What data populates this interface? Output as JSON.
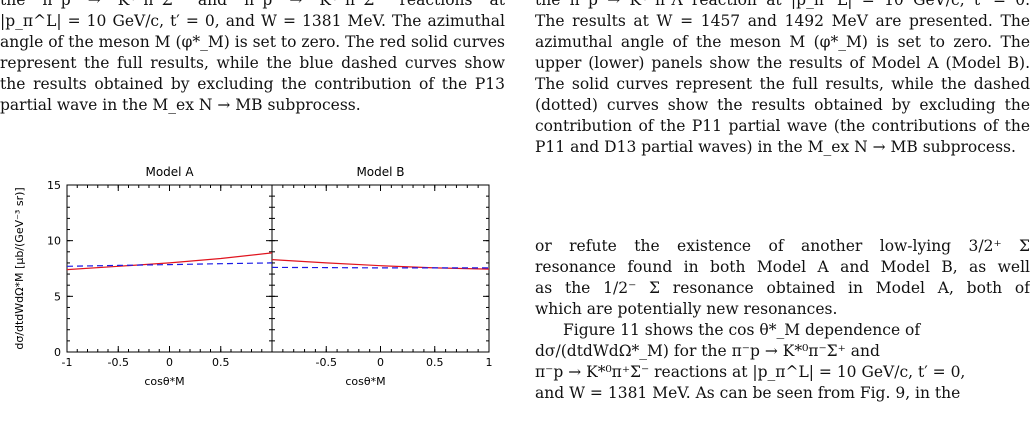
{
  "left_caption_lines": [
    "the π⁻p → K*⁰π⁻Σ⁺ and π⁻p → K*⁰π⁺Σ⁻ reactions at",
    "|p_π^L| = 10 GeV/c, t′ = 0, and W = 1381 MeV. The azimuthal",
    "angle of the meson M (φ*_M) is set to zero. The red solid curves",
    "represent the full results, while the blue dashed curves show",
    "the results obtained by excluding the contribution of the P13",
    "partial wave in the M_ex N → MB subprocess."
  ],
  "right_caption_lines": [
    "the π⁻p → K*⁰π⁰Λ reaction at |p_π^L| = 10 GeV/c, t′ = 0.",
    "The results at W = 1457 and 1492 MeV are presented. The",
    "azimuthal angle of the meson M (φ*_M) is set to zero. The",
    "upper (lower) panels show the results of Model A (Model B).",
    "The solid curves represent the full results, while the dashed",
    "(dotted) curves show the results obtained by excluding the",
    "contribution of the P11 partial wave (the contributions of the",
    "P11 and D13 partial waves) in the M_ex N → MB subprocess."
  ],
  "body_para1_lines": [
    "or refute the existence of another low-lying 3/2⁺ Σ",
    "resonance found in both Model A and Model B, as well",
    "as the 1/2⁻ Σ resonance obtained in Model A, both of",
    "which are potentially new resonances."
  ],
  "body_para2_lines": [
    "Figure 11 shows the cos θ*_M dependence of",
    "dσ/(dtdWdΩ*_M) for the π⁻p → K*⁰π⁻Σ⁺ and",
    "π⁻p → K*⁰π⁺Σ⁻ reactions at |p_π^L| = 10 GeV/c, t′ = 0,",
    "and W = 1381 MeV. As can be seen from Fig. 9, in the"
  ],
  "chart_data": [
    {
      "type": "line",
      "title": "Model A",
      "xlabel": "cosθ*M",
      "ylabel": "dσ/dtdWdΩ*M [μb/(GeV⁻³ sr)]",
      "xlim": [
        -1,
        1
      ],
      "ylim": [
        0,
        15
      ],
      "xticks": [
        "-1",
        "-0.5",
        "0",
        "0.5"
      ],
      "yticks": [
        "0",
        "5",
        "10",
        "15"
      ],
      "series": [
        {
          "style": "solid",
          "color": "#e0141e",
          "x": [
            -1,
            -0.5,
            0,
            0.5,
            1
          ],
          "y": [
            7.4,
            7.7,
            8.0,
            8.4,
            8.9
          ]
        },
        {
          "style": "dashed",
          "color": "#1a1ae6",
          "x": [
            -1,
            -0.5,
            0,
            0.5,
            1
          ],
          "y": [
            7.7,
            7.78,
            7.85,
            7.93,
            8.0
          ]
        }
      ]
    },
    {
      "type": "line",
      "title": "Model B",
      "xlabel": "cosθ*M",
      "ylabel": "",
      "xlim": [
        -1,
        1
      ],
      "ylim": [
        0,
        15
      ],
      "xticks": [
        "-0.5",
        "0",
        "0.5",
        "1"
      ],
      "yticks": [],
      "series": [
        {
          "style": "solid",
          "color": "#e0141e",
          "x": [
            -1,
            -0.5,
            0,
            0.5,
            1
          ],
          "y": [
            8.3,
            8.0,
            7.75,
            7.55,
            7.45
          ]
        },
        {
          "style": "dashed",
          "color": "#1a1ae6",
          "x": [
            -1,
            -0.5,
            0,
            0.5,
            1
          ],
          "y": [
            7.6,
            7.58,
            7.55,
            7.55,
            7.55
          ]
        }
      ]
    }
  ]
}
